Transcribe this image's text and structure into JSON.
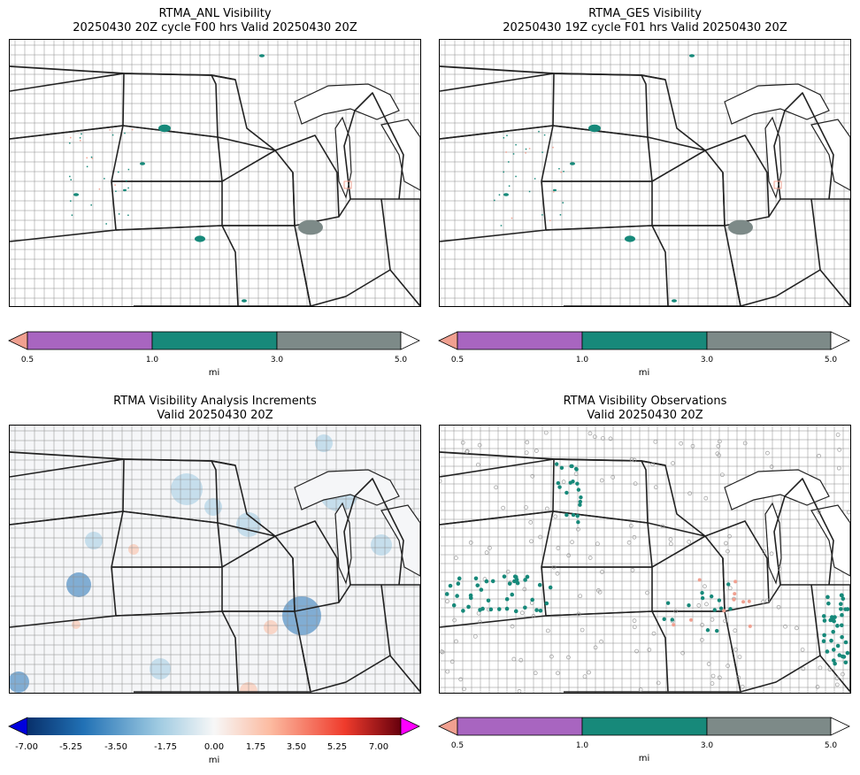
{
  "panels": [
    {
      "title": "RTMA_ANL Visibility",
      "subtitle": "20250430 20Z cycle F00 hrs Valid 20250430 20Z",
      "colorbar": {
        "ticks": [
          "0.5",
          "1.0",
          "3.0",
          "5.0"
        ],
        "unit": "mi",
        "colors": [
          "#f0a090",
          "#a865c0",
          "#17897a",
          "#7d8a88",
          "#ffffff"
        ]
      }
    },
    {
      "title": "RTMA_GES Visibility",
      "subtitle": "20250430 19Z cycle F01 hrs Valid 20250430 20Z",
      "colorbar": {
        "ticks": [
          "0.5",
          "1.0",
          "3.0",
          "5.0"
        ],
        "unit": "mi",
        "colors": [
          "#f0a090",
          "#a865c0",
          "#17897a",
          "#7d8a88",
          "#ffffff"
        ]
      }
    },
    {
      "title": "RTMA Visibility Analysis Increments",
      "subtitle": "Valid 20250430 20Z",
      "colorbar": {
        "ticks": [
          "-7.00",
          "-5.25",
          "-3.50",
          "-1.75",
          "0.00",
          "1.75",
          "3.50",
          "5.25",
          "7.00"
        ],
        "unit": "mi",
        "colors": [
          "#0000dd",
          "#08306b",
          "#2171b5",
          "#9ecae1",
          "#f7f7f7",
          "#fcbba1",
          "#ef3b2c",
          "#67000d",
          "#ff00ff"
        ]
      }
    },
    {
      "title": "RTMA Visibility Observations",
      "subtitle": "Valid 20250430 20Z",
      "colorbar": {
        "ticks": [
          "0.5",
          "1.0",
          "3.0",
          "5.0"
        ],
        "unit": "mi",
        "colors": [
          "#f0a090",
          "#a865c0",
          "#17897a",
          "#7d8a88",
          "#ffffff"
        ]
      }
    }
  ]
}
